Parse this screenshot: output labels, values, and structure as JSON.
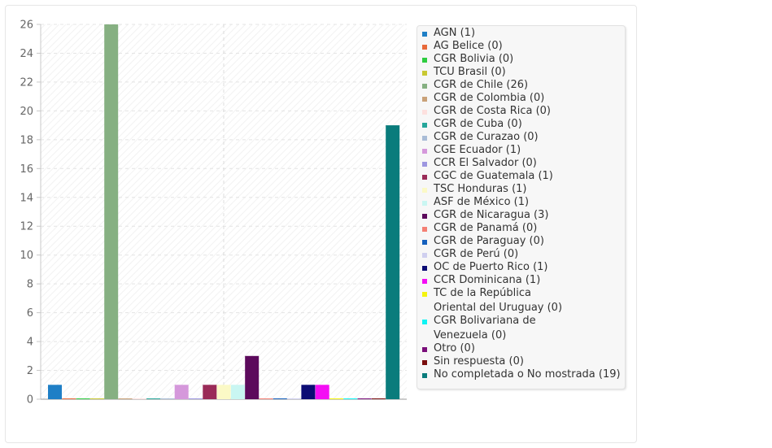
{
  "chart_data": {
    "type": "bar",
    "ylim": [
      0,
      26
    ],
    "yticks": [
      "0",
      "2",
      "4",
      "6",
      "8",
      "10",
      "12",
      "14",
      "16",
      "18",
      "20",
      "22",
      "24",
      "26"
    ],
    "grid": true,
    "legend_position": "right",
    "series": [
      {
        "label": "AGN (1)",
        "value": 1,
        "color": "#1f7fc6"
      },
      {
        "label": "AG Belice (0)",
        "value": 0,
        "color": "#e8693a"
      },
      {
        "label": "CGR Bolivia (0)",
        "value": 0,
        "color": "#2ecc40"
      },
      {
        "label": "TCU Brasil (0)",
        "value": 0,
        "color": "#c8c832"
      },
      {
        "label": "CGR de Chile (26)",
        "value": 26,
        "color": "#86b082"
      },
      {
        "label": "CGR de Colombia (0)",
        "value": 0,
        "color": "#c9a178"
      },
      {
        "label": "CGR de Costa Rica (0)",
        "value": 0,
        "color": "#fde0de"
      },
      {
        "label": "CGR de Cuba (0)",
        "value": 0,
        "color": "#26a69a"
      },
      {
        "label": "CGR de Curazao (0)",
        "value": 0,
        "color": "#a9bcd6"
      },
      {
        "label": "CGE Ecuador (1)",
        "value": 1,
        "color": "#d598db"
      },
      {
        "label": "CCR El Salvador (0)",
        "value": 0,
        "color": "#9d96e0"
      },
      {
        "label": "CGC de Guatemala (1)",
        "value": 1,
        "color": "#9a2b58"
      },
      {
        "label": "TSC Honduras (1)",
        "value": 1,
        "color": "#fbf9c6"
      },
      {
        "label": "ASF de México (1)",
        "value": 1,
        "color": "#c9f6f2"
      },
      {
        "label": "CGR de Nicaragua (3)",
        "value": 3,
        "color": "#5c0a5c"
      },
      {
        "label": "CGR de Panamá (0)",
        "value": 0,
        "color": "#f47f74"
      },
      {
        "label": "CGR de Paraguay (0)",
        "value": 0,
        "color": "#1560bd"
      },
      {
        "label": "CGR de Perú (0)",
        "value": 0,
        "color": "#cfcfef"
      },
      {
        "label": "OC de Puerto Rico (1)",
        "value": 1,
        "color": "#0c0c74"
      },
      {
        "label": "CCR Dominicana (1)",
        "value": 1,
        "color": "#f40ef4"
      },
      {
        "label": "TC de la República|Oriental del Uruguay (0)",
        "value": 0,
        "color": "#f4f40e"
      },
      {
        "label": "CGR Bolivariana de|Venezuela (0)",
        "value": 0,
        "color": "#0ef4f4"
      },
      {
        "label": "Otro (0)",
        "value": 0,
        "color": "#7a0e7a"
      },
      {
        "label": "Sin respuesta (0)",
        "value": 0,
        "color": "#7a0e0e"
      },
      {
        "label": "No completada o No mostrada (19)",
        "value": 19,
        "color": "#0a7c7c"
      }
    ]
  }
}
